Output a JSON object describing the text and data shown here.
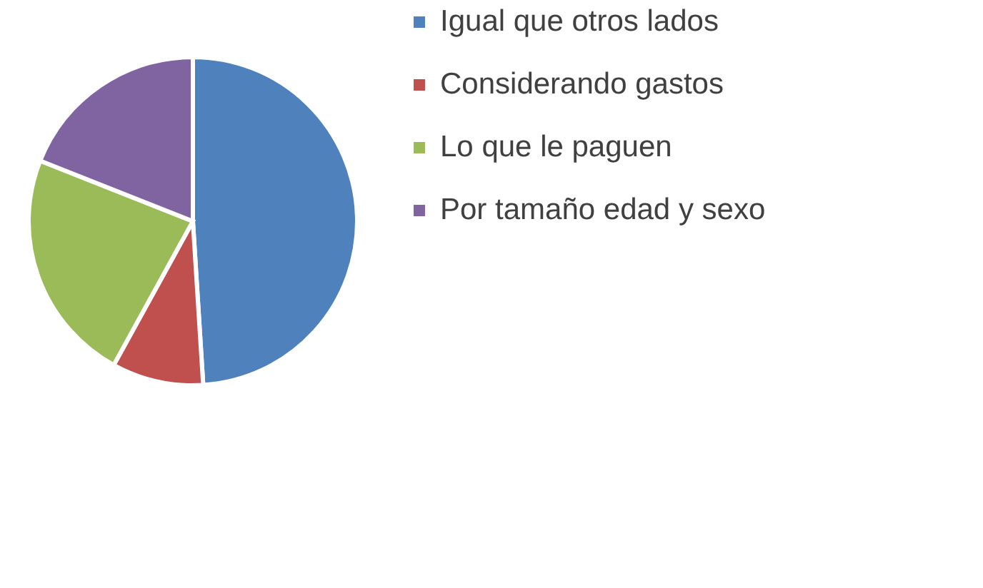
{
  "chart_data": {
    "type": "pie",
    "categories": [
      "Igual que otros lados",
      "Considerando gastos",
      "Lo que le paguen",
      "Por tamaño edad y sexo"
    ],
    "values": [
      49,
      9,
      23,
      19
    ],
    "colors": [
      "#4f81bd",
      "#c0504d",
      "#9bbb59",
      "#8064a2"
    ],
    "legend": "right"
  }
}
